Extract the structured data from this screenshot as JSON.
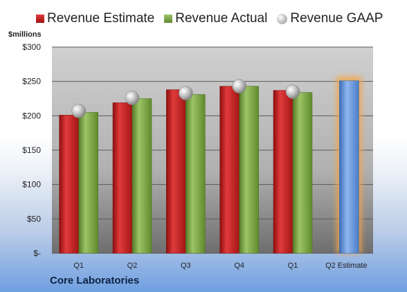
{
  "legend": {
    "estimate": "Revenue Estimate",
    "actual": "Revenue Actual",
    "gaap": "Revenue GAAP"
  },
  "y_unit_label": "$millions",
  "company": "Core Laboratories",
  "colors": {
    "estimate": "#c62020",
    "actual": "#7aa444",
    "gaap_marker": "#b8b8b8",
    "future_estimate": "#5b8fd6",
    "highlight_glow": "#f4a64a"
  },
  "chart_data": {
    "type": "bar",
    "categories": [
      "Q1",
      "Q2",
      "Q3",
      "Q4",
      "Q1",
      "Q2 Estimate"
    ],
    "series": [
      {
        "name": "Revenue Estimate",
        "values": [
          201,
          219,
          238,
          243,
          237,
          251
        ]
      },
      {
        "name": "Revenue Actual",
        "values": [
          205,
          225,
          231,
          243,
          234,
          null
        ]
      },
      {
        "name": "Revenue GAAP",
        "values": [
          207,
          226,
          233,
          243,
          235,
          null
        ]
      }
    ],
    "ylabel": "$millions",
    "ylim": [
      0,
      300
    ],
    "yticks": [
      0,
      50,
      100,
      150,
      200,
      250,
      300
    ],
    "ytick_labels": [
      "$-",
      "$50",
      "$100",
      "$150",
      "$200",
      "$250",
      "$300"
    ],
    "grid": true,
    "legend_position": "top"
  }
}
